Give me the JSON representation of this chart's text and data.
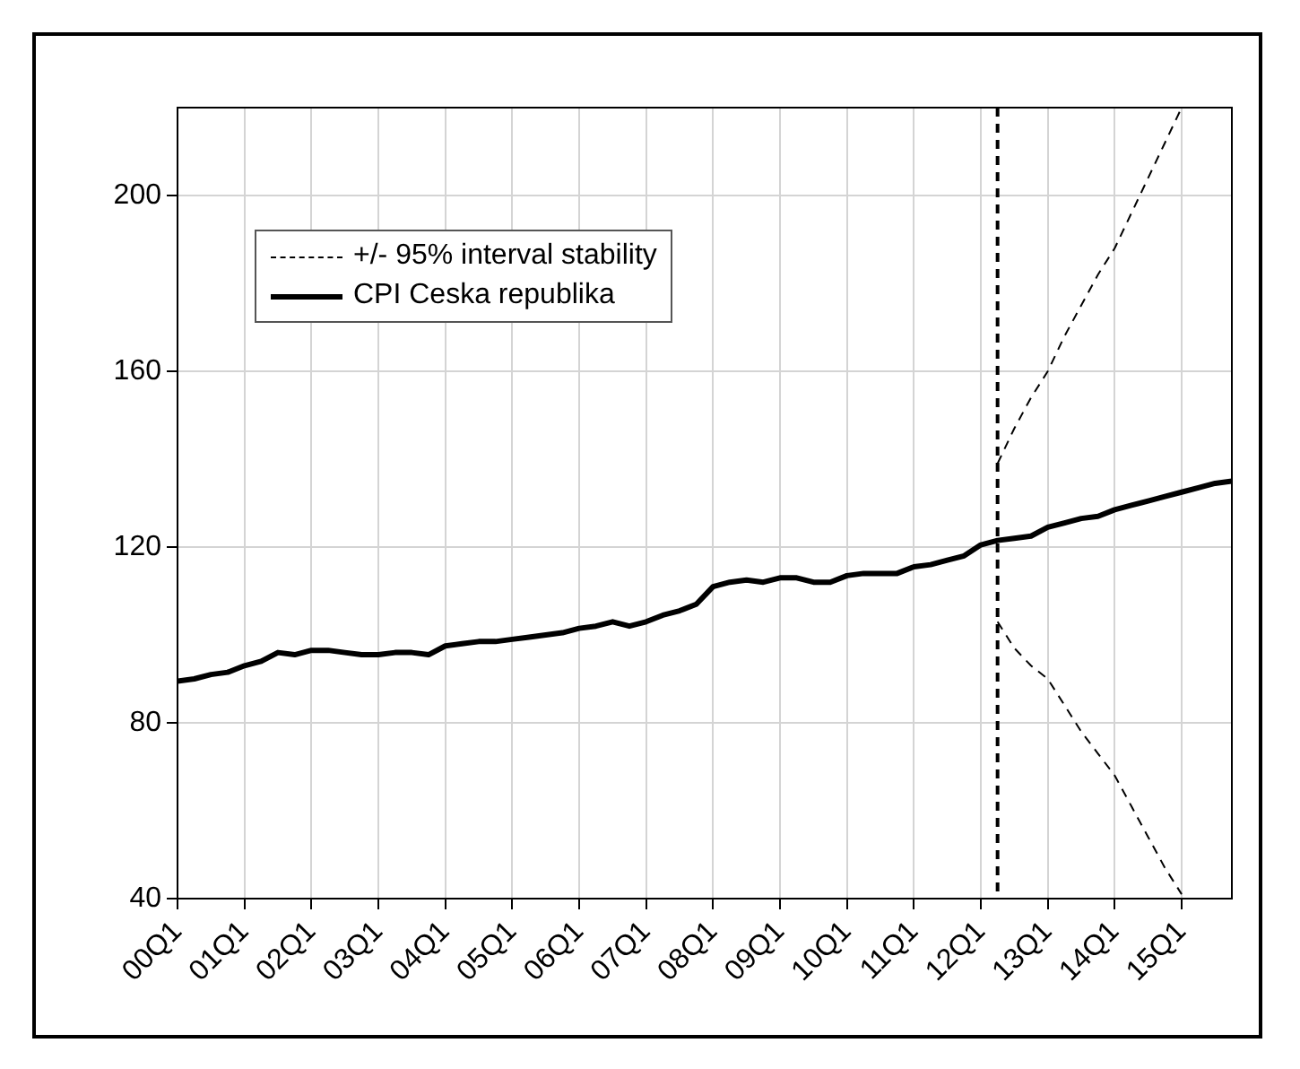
{
  "chart_data": {
    "type": "line",
    "categories": [
      "00Q1",
      null,
      null,
      null,
      "01Q1",
      null,
      null,
      null,
      "02Q1",
      null,
      null,
      null,
      "03Q1",
      null,
      null,
      null,
      "04Q1",
      null,
      null,
      null,
      "05Q1",
      null,
      null,
      null,
      "06Q1",
      null,
      null,
      null,
      "07Q1",
      null,
      null,
      null,
      "08Q1",
      null,
      null,
      null,
      "09Q1",
      null,
      null,
      null,
      "10Q1",
      null,
      null,
      null,
      "11Q1",
      null,
      null,
      null,
      "12Q1",
      null,
      null,
      null,
      "13Q1",
      null,
      null,
      null,
      "14Q1",
      null,
      null,
      null,
      "15Q1",
      null,
      null,
      null
    ],
    "series": [
      {
        "name": "+/- 95% interval stability",
        "color": "#000000",
        "line_style": "dashed",
        "values": [
          null,
          null,
          null,
          null,
          null,
          null,
          null,
          null,
          null,
          null,
          null,
          null,
          null,
          null,
          null,
          null,
          null,
          null,
          null,
          null,
          null,
          null,
          null,
          null,
          null,
          null,
          null,
          null,
          null,
          null,
          null,
          null,
          null,
          null,
          null,
          null,
          null,
          null,
          null,
          null,
          null,
          null,
          null,
          null,
          null,
          null,
          null,
          null,
          null,
          139,
          147,
          154,
          160,
          168,
          175,
          182,
          188,
          196,
          204,
          212,
          220,
          null,
          null,
          null
        ]
      },
      {
        "color": "#000000",
        "line_style": "dashed",
        "values": [
          null,
          null,
          null,
          null,
          null,
          null,
          null,
          null,
          null,
          null,
          null,
          null,
          null,
          null,
          null,
          null,
          null,
          null,
          null,
          null,
          null,
          null,
          null,
          null,
          null,
          null,
          null,
          null,
          null,
          null,
          null,
          null,
          null,
          null,
          null,
          null,
          null,
          null,
          null,
          null,
          null,
          null,
          null,
          null,
          null,
          null,
          null,
          null,
          null,
          103,
          97,
          93,
          90,
          84,
          78,
          73,
          68,
          61,
          54,
          47,
          41,
          null,
          null,
          null
        ]
      },
      {
        "name": "CPI Ceska republika",
        "color": "#000000",
        "line_style": "solid",
        "values": [
          89.5,
          90,
          91,
          91.5,
          93,
          94,
          96,
          95.5,
          96.5,
          96.5,
          96,
          95.5,
          95.5,
          96,
          96,
          95.5,
          97.5,
          98,
          98.5,
          98.5,
          99,
          99.5,
          100,
          100.5,
          101.5,
          102,
          103,
          102,
          103,
          104.5,
          105.5,
          107,
          111,
          112,
          112.5,
          112,
          113,
          113,
          112,
          112,
          113.5,
          114,
          114,
          114,
          115.5,
          116,
          117,
          118,
          120.5,
          121.5,
          122,
          122.5,
          124.5,
          125.5,
          126.5,
          127,
          128.5,
          129.5,
          130.5,
          131.5,
          132.5,
          133.5,
          134.5,
          135
        ]
      }
    ],
    "ylim": [
      40,
      220
    ],
    "yticks": [
      40,
      80,
      120,
      160,
      200
    ],
    "grid": true,
    "legend": "top left",
    "marker": "none"
  }
}
